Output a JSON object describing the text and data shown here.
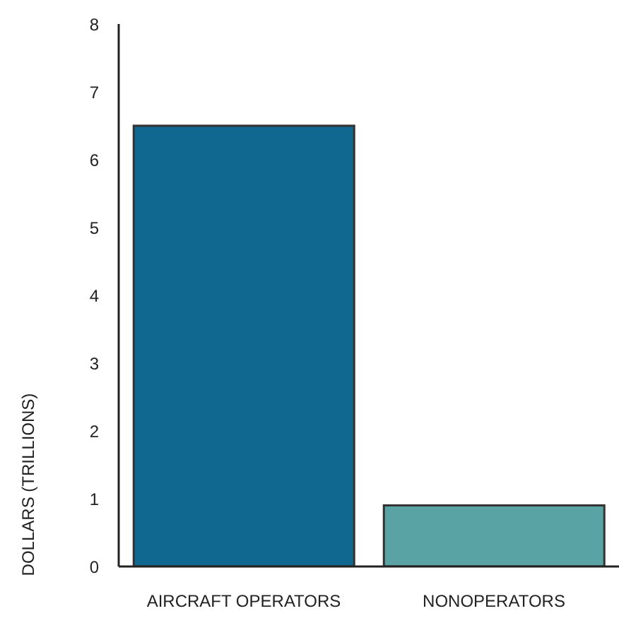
{
  "chart_data": {
    "type": "bar",
    "ylabel": "DOLLARS (TRILLIONS)",
    "categories": [
      "AIRCRAFT OPERATORS",
      "NONOPERATORS"
    ],
    "values": [
      6.5,
      0.9
    ],
    "colors": [
      "#10678f",
      "#5aa3a5"
    ],
    "ylim": [
      0,
      8
    ],
    "yticks": [
      0,
      1,
      2,
      3,
      4,
      5,
      6,
      7,
      8
    ],
    "grid": false,
    "legend": false
  }
}
